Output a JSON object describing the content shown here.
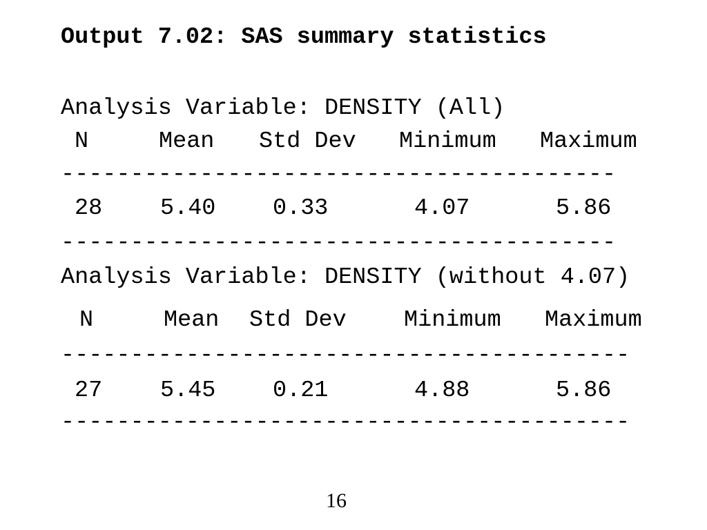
{
  "title": "Output 7.02: SAS summary statistics",
  "sections": [
    {
      "heading": "Analysis Variable: DENSITY (All)",
      "columns": [
        "N",
        "Mean",
        "Std Dev",
        "Minimum",
        "Maximum"
      ],
      "separator": "----------------------------------------",
      "row": [
        "28",
        "5.40",
        "0.33",
        "4.07",
        "5.86"
      ]
    },
    {
      "heading": "Analysis Variable: DENSITY (without 4.07)",
      "columns": [
        "N",
        "Mean",
        "Std Dev",
        "Minimum",
        "Maximum"
      ],
      "separator": "-----------------------------------------",
      "row": [
        "27",
        "5.45",
        "0.21",
        "4.88",
        "5.86"
      ]
    }
  ],
  "page_number": "16"
}
